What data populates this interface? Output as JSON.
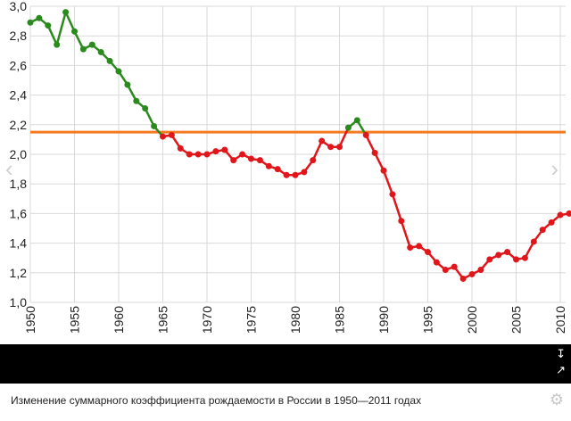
{
  "caption": "Изменение суммарного коэффициента рождаемости в России в 1950—2011 годах",
  "icons": {
    "settings": "gear-icon",
    "prev": "chevron-left-icon",
    "next": "chevron-right-icon",
    "download": "download-icon",
    "share": "share-icon"
  },
  "colors": {
    "above_replacement": "#2b8a1e",
    "below_replacement": "#e0161b",
    "replacement_line": "#f47a20",
    "grid": "#d9d9d9",
    "bar": "#000000"
  },
  "chart_data": {
    "type": "line",
    "title": "",
    "xlabel": "",
    "ylabel": "",
    "xlim": [
      1950,
      2011
    ],
    "ylim": [
      1.0,
      3.0
    ],
    "y_ticks": [
      "1,0",
      "1,2",
      "1,4",
      "1,6",
      "1,8",
      "2,0",
      "2,2",
      "2,4",
      "2,6",
      "2,8",
      "3,0"
    ],
    "x_ticks": [
      "1950",
      "1955",
      "1960",
      "1965",
      "1970",
      "1975",
      "1980",
      "1985",
      "1990",
      "1995",
      "2000",
      "2005",
      "2010"
    ],
    "grid": true,
    "reference_line": {
      "value": 2.15
    },
    "series": [
      {
        "x": [
          1950,
          1951,
          1952,
          1953,
          1954,
          1955,
          1956,
          1957,
          1958,
          1959,
          1960,
          1961,
          1962,
          1963,
          1964,
          1965,
          1966,
          1967,
          1968,
          1969,
          1970,
          1971,
          1972,
          1973,
          1974,
          1975,
          1976,
          1977,
          1978,
          1979,
          1980,
          1981,
          1982,
          1983,
          1984,
          1985,
          1986,
          1987,
          1988,
          1989,
          1990,
          1991,
          1992,
          1993,
          1994,
          1995,
          1996,
          1997,
          1998,
          1999,
          2000,
          2001,
          2002,
          2003,
          2004,
          2005,
          2006,
          2007,
          2008,
          2009,
          2010,
          2011
        ],
        "values": [
          2.89,
          2.92,
          2.87,
          2.74,
          2.96,
          2.83,
          2.71,
          2.74,
          2.69,
          2.63,
          2.56,
          2.47,
          2.36,
          2.31,
          2.19,
          2.12,
          2.13,
          2.04,
          2.0,
          2.0,
          2.0,
          2.02,
          2.03,
          1.96,
          2.0,
          1.97,
          1.96,
          1.92,
          1.9,
          1.86,
          1.86,
          1.88,
          1.96,
          2.09,
          2.05,
          2.05,
          2.18,
          2.23,
          2.13,
          2.01,
          1.89,
          1.73,
          1.55,
          1.37,
          1.38,
          1.34,
          1.27,
          1.22,
          1.24,
          1.16,
          1.19,
          1.22,
          1.29,
          1.32,
          1.34,
          1.29,
          1.3,
          1.41,
          1.49,
          1.54,
          1.59,
          1.6
        ]
      }
    ]
  }
}
